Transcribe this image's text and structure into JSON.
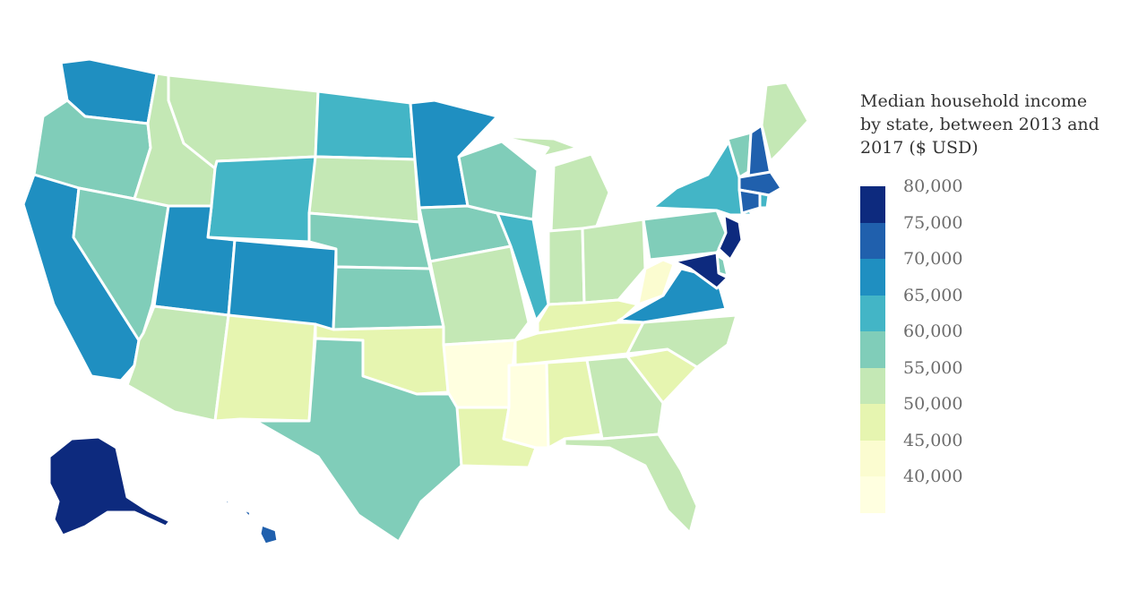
{
  "legend": {
    "title": "Median household income by state, between 2013 and 2017 ($ USD)",
    "bins": [
      {
        "label": "80,000",
        "color": "#0d2a7e"
      },
      {
        "label": "75,000",
        "color": "#2060ad"
      },
      {
        "label": "70,000",
        "color": "#1f8fc1"
      },
      {
        "label": "65,000",
        "color": "#43b5c6"
      },
      {
        "label": "60,000",
        "color": "#80cdb9"
      },
      {
        "label": "55,000",
        "color": "#c4e8b5"
      },
      {
        "label": "50,000",
        "color": "#e6f5b0"
      },
      {
        "label": "45,000",
        "color": "#fbfcd0"
      },
      {
        "label": "40,000",
        "color": "#ffffe0"
      }
    ]
  },
  "states": [
    {
      "code": "WA",
      "color": "#1f8fc1"
    },
    {
      "code": "OR",
      "color": "#80cdb9"
    },
    {
      "code": "CA",
      "color": "#1f8fc1"
    },
    {
      "code": "NV",
      "color": "#80cdb9"
    },
    {
      "code": "ID",
      "color": "#c4e8b5"
    },
    {
      "code": "MT",
      "color": "#c4e8b5"
    },
    {
      "code": "WY",
      "color": "#43b5c6"
    },
    {
      "code": "UT",
      "color": "#1f8fc1"
    },
    {
      "code": "AZ",
      "color": "#c4e8b5"
    },
    {
      "code": "CO",
      "color": "#1f8fc1"
    },
    {
      "code": "NM",
      "color": "#e6f5b0"
    },
    {
      "code": "ND",
      "color": "#43b5c6"
    },
    {
      "code": "SD",
      "color": "#c4e8b5"
    },
    {
      "code": "NE",
      "color": "#80cdb9"
    },
    {
      "code": "KS",
      "color": "#80cdb9"
    },
    {
      "code": "OK",
      "color": "#e6f5b0"
    },
    {
      "code": "TX",
      "color": "#80cdb9"
    },
    {
      "code": "MN",
      "color": "#1f8fc1"
    },
    {
      "code": "IA",
      "color": "#80cdb9"
    },
    {
      "code": "MO",
      "color": "#c4e8b5"
    },
    {
      "code": "AR",
      "color": "#ffffe0"
    },
    {
      "code": "LA",
      "color": "#e6f5b0"
    },
    {
      "code": "WI",
      "color": "#80cdb9"
    },
    {
      "code": "IL",
      "color": "#43b5c6"
    },
    {
      "code": "MI",
      "color": "#c4e8b5"
    },
    {
      "code": "IN",
      "color": "#c4e8b5"
    },
    {
      "code": "OH",
      "color": "#c4e8b5"
    },
    {
      "code": "KY",
      "color": "#e6f5b0"
    },
    {
      "code": "TN",
      "color": "#e6f5b0"
    },
    {
      "code": "MS",
      "color": "#ffffe0"
    },
    {
      "code": "AL",
      "color": "#e6f5b0"
    },
    {
      "code": "GA",
      "color": "#c4e8b5"
    },
    {
      "code": "FL",
      "color": "#c4e8b5"
    },
    {
      "code": "SC",
      "color": "#e6f5b0"
    },
    {
      "code": "NC",
      "color": "#c4e8b5"
    },
    {
      "code": "VA",
      "color": "#1f8fc1"
    },
    {
      "code": "WV",
      "color": "#fbfcd0"
    },
    {
      "code": "PA",
      "color": "#80cdb9"
    },
    {
      "code": "NY",
      "color": "#43b5c6"
    },
    {
      "code": "VT",
      "color": "#80cdb9"
    },
    {
      "code": "NH",
      "color": "#2060ad"
    },
    {
      "code": "ME",
      "color": "#c4e8b5"
    },
    {
      "code": "MA",
      "color": "#2060ad"
    },
    {
      "code": "CT",
      "color": "#2060ad"
    },
    {
      "code": "RI",
      "color": "#43b5c6"
    },
    {
      "code": "NJ",
      "color": "#0d2a7e"
    },
    {
      "code": "DE",
      "color": "#80cdb9"
    },
    {
      "code": "MD",
      "color": "#0d2a7e"
    },
    {
      "code": "AK",
      "color": "#0d2a7e"
    },
    {
      "code": "HI",
      "color": "#2060ad"
    }
  ]
}
